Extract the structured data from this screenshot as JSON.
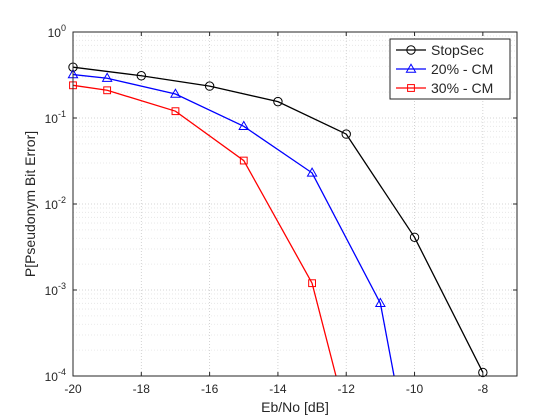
{
  "chart_data": {
    "type": "line",
    "xlabel": "Eb/No [dB]",
    "ylabel": "P[Pseudonym Bit Error]",
    "xlim": [
      -20,
      -7
    ],
    "ylim": [
      0.0001,
      1
    ],
    "yscale": "log",
    "grid": true,
    "minor_grid": true,
    "legend_position": "top-right",
    "x_ticks": [
      -20,
      -18,
      -16,
      -14,
      -12,
      -10,
      -8
    ],
    "x_tick_labels": [
      "-20",
      "-18",
      "-16",
      "-14",
      "-12",
      "-10",
      "-8"
    ],
    "y_ticks": [
      {
        "value": 0.0001,
        "base": "10",
        "exp": "-4"
      },
      {
        "value": 0.001,
        "base": "10",
        "exp": "-3"
      },
      {
        "value": 0.01,
        "base": "10",
        "exp": "-2"
      },
      {
        "value": 0.1,
        "base": "10",
        "exp": "-1"
      },
      {
        "value": 1,
        "base": "10",
        "exp": "0"
      }
    ],
    "series": [
      {
        "name": "StopSec",
        "color": "#000000",
        "marker": "circle",
        "x": [
          -20,
          -18,
          -16,
          -14,
          -12,
          -10,
          -8
        ],
        "y": [
          0.39,
          0.31,
          0.235,
          0.155,
          0.065,
          0.0041,
          0.00011
        ]
      },
      {
        "name": "20% - CM",
        "color": "#0000ff",
        "marker": "triangle",
        "x": [
          -20,
          -19,
          -17,
          -15,
          -13,
          -11,
          -10.6
        ],
        "y": [
          0.32,
          0.29,
          0.19,
          0.08,
          0.023,
          0.0007,
          0.0001
        ],
        "marker_count": 6
      },
      {
        "name": "30% - CM",
        "color": "#ff0000",
        "marker": "square",
        "x": [
          -20,
          -19,
          -17,
          -15,
          -13,
          -12.3
        ],
        "y": [
          0.24,
          0.21,
          0.12,
          0.032,
          0.0012,
          0.0001
        ],
        "marker_count": 5
      }
    ]
  }
}
